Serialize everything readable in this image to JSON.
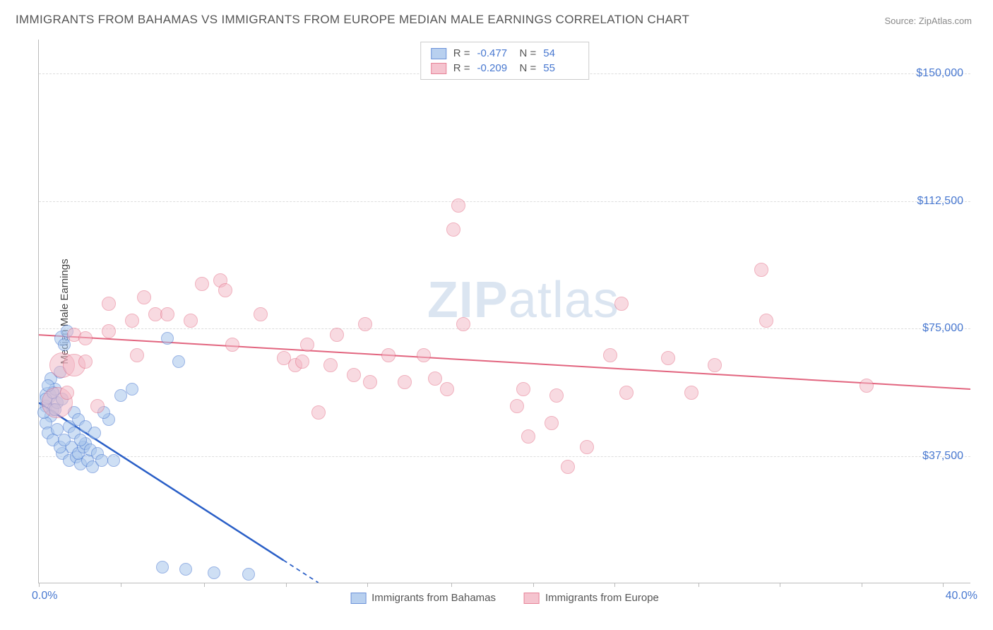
{
  "title": "IMMIGRANTS FROM BAHAMAS VS IMMIGRANTS FROM EUROPE MEDIAN MALE EARNINGS CORRELATION CHART",
  "source": "Source: ZipAtlas.com",
  "y_axis_title": "Median Male Earnings",
  "watermark_bold": "ZIP",
  "watermark_thin": "atlas",
  "chart": {
    "type": "scatter",
    "background_color": "#ffffff",
    "grid_color": "#dddddd",
    "axis_color": "#bbbbbb",
    "value_color": "#4878d0",
    "xlim": [
      0,
      40
    ],
    "ylim": [
      0,
      160000
    ],
    "x_tick_positions": [
      0,
      3.5,
      7.1,
      10.6,
      14.1,
      17.7,
      21.2,
      24.7,
      28.3,
      31.8,
      35.3,
      38.8
    ],
    "x_min_label": "0.0%",
    "x_max_label": "40.0%",
    "y_gridlines": [
      {
        "value": 37500,
        "label": "$37,500"
      },
      {
        "value": 75000,
        "label": "$75,000"
      },
      {
        "value": 112500,
        "label": "$112,500"
      },
      {
        "value": 150000,
        "label": "$150,000"
      }
    ],
    "series": [
      {
        "name": "Immigrants from Bahamas",
        "fill": "#a7c5ec",
        "stroke": "#4878d0",
        "fill_opacity": 0.55,
        "stroke_width": 1.2,
        "marker_radius": 9,
        "line_color": "#2a5fc7",
        "line_width": 2.5,
        "regression": {
          "x1": 0,
          "y1": 53000,
          "x2": 12,
          "y2": 0,
          "dash_after_x": 10.5
        },
        "stats": {
          "R": "-0.477",
          "N": "54"
        },
        "points": [
          {
            "x": 0.3,
            "y": 52000,
            "r": 9
          },
          {
            "x": 0.6,
            "y": 51000,
            "r": 9
          },
          {
            "x": 0.4,
            "y": 55000,
            "r": 12
          },
          {
            "x": 0.5,
            "y": 49000,
            "r": 9
          },
          {
            "x": 0.7,
            "y": 57000,
            "r": 9
          },
          {
            "x": 0.8,
            "y": 53000,
            "r": 9
          },
          {
            "x": 0.5,
            "y": 60000,
            "r": 9
          },
          {
            "x": 0.9,
            "y": 62000,
            "r": 9
          },
          {
            "x": 0.3,
            "y": 47000,
            "r": 9
          },
          {
            "x": 0.4,
            "y": 44000,
            "r": 9
          },
          {
            "x": 1.0,
            "y": 72000,
            "r": 11
          },
          {
            "x": 1.2,
            "y": 74000,
            "r": 9
          },
          {
            "x": 1.1,
            "y": 70000,
            "r": 9
          },
          {
            "x": 1.3,
            "y": 46000,
            "r": 9
          },
          {
            "x": 1.5,
            "y": 44000,
            "r": 9
          },
          {
            "x": 1.4,
            "y": 40000,
            "r": 9
          },
          {
            "x": 1.0,
            "y": 38000,
            "r": 9
          },
          {
            "x": 1.3,
            "y": 36000,
            "r": 9
          },
          {
            "x": 1.6,
            "y": 37000,
            "r": 9
          },
          {
            "x": 1.8,
            "y": 35000,
            "r": 9
          },
          {
            "x": 1.7,
            "y": 38000,
            "r": 9
          },
          {
            "x": 1.9,
            "y": 40000,
            "r": 9
          },
          {
            "x": 2.0,
            "y": 41000,
            "r": 9
          },
          {
            "x": 2.1,
            "y": 36000,
            "r": 9
          },
          {
            "x": 2.3,
            "y": 34000,
            "r": 9
          },
          {
            "x": 2.2,
            "y": 39000,
            "r": 9
          },
          {
            "x": 2.5,
            "y": 38000,
            "r": 9
          },
          {
            "x": 2.7,
            "y": 36000,
            "r": 9
          },
          {
            "x": 1.5,
            "y": 50000,
            "r": 9
          },
          {
            "x": 1.7,
            "y": 48000,
            "r": 9
          },
          {
            "x": 2.0,
            "y": 46000,
            "r": 9
          },
          {
            "x": 2.4,
            "y": 44000,
            "r": 9
          },
          {
            "x": 0.8,
            "y": 45000,
            "r": 9
          },
          {
            "x": 0.6,
            "y": 42000,
            "r": 9
          },
          {
            "x": 0.9,
            "y": 40000,
            "r": 9
          },
          {
            "x": 1.1,
            "y": 42000,
            "r": 9
          },
          {
            "x": 3.0,
            "y": 48000,
            "r": 9
          },
          {
            "x": 3.2,
            "y": 36000,
            "r": 9
          },
          {
            "x": 3.5,
            "y": 55000,
            "r": 9
          },
          {
            "x": 4.0,
            "y": 57000,
            "r": 9
          },
          {
            "x": 5.5,
            "y": 72000,
            "r": 9
          },
          {
            "x": 6.0,
            "y": 65000,
            "r": 9
          },
          {
            "x": 6.3,
            "y": 4000,
            "r": 9
          },
          {
            "x": 5.3,
            "y": 4500,
            "r": 9
          },
          {
            "x": 7.5,
            "y": 3000,
            "r": 9
          },
          {
            "x": 9.0,
            "y": 2500,
            "r": 9
          },
          {
            "x": 2.8,
            "y": 50000,
            "r": 9
          },
          {
            "x": 0.2,
            "y": 50000,
            "r": 9
          },
          {
            "x": 0.3,
            "y": 54000,
            "r": 9
          },
          {
            "x": 0.6,
            "y": 56000,
            "r": 9
          },
          {
            "x": 0.4,
            "y": 58000,
            "r": 9
          },
          {
            "x": 0.7,
            "y": 51000,
            "r": 9
          },
          {
            "x": 1.0,
            "y": 54000,
            "r": 9
          },
          {
            "x": 1.8,
            "y": 42000,
            "r": 9
          }
        ]
      },
      {
        "name": "Immigrants from Europe",
        "fill": "#f3b6c4",
        "stroke": "#e2657f",
        "fill_opacity": 0.5,
        "stroke_width": 1.2,
        "marker_radius": 10,
        "line_color": "#e2657f",
        "line_width": 2,
        "regression": {
          "x1": 0,
          "y1": 73000,
          "x2": 40,
          "y2": 57000
        },
        "stats": {
          "R": "-0.209",
          "N": "55"
        },
        "points": [
          {
            "x": 1.0,
            "y": 64000,
            "r": 18
          },
          {
            "x": 0.8,
            "y": 53000,
            "r": 22
          },
          {
            "x": 1.5,
            "y": 64000,
            "r": 16
          },
          {
            "x": 1.5,
            "y": 73000,
            "r": 10
          },
          {
            "x": 2.0,
            "y": 72000,
            "r": 10
          },
          {
            "x": 2.0,
            "y": 65000,
            "r": 10
          },
          {
            "x": 3.0,
            "y": 74000,
            "r": 10
          },
          {
            "x": 3.0,
            "y": 82000,
            "r": 10
          },
          {
            "x": 4.0,
            "y": 77000,
            "r": 10
          },
          {
            "x": 4.5,
            "y": 84000,
            "r": 10
          },
          {
            "x": 4.2,
            "y": 67000,
            "r": 10
          },
          {
            "x": 5.0,
            "y": 79000,
            "r": 10
          },
          {
            "x": 5.5,
            "y": 79000,
            "r": 10
          },
          {
            "x": 6.5,
            "y": 77000,
            "r": 10
          },
          {
            "x": 7.0,
            "y": 88000,
            "r": 10
          },
          {
            "x": 7.8,
            "y": 89000,
            "r": 10
          },
          {
            "x": 8.0,
            "y": 86000,
            "r": 10
          },
          {
            "x": 8.3,
            "y": 70000,
            "r": 10
          },
          {
            "x": 9.5,
            "y": 79000,
            "r": 10
          },
          {
            "x": 10.5,
            "y": 66000,
            "r": 10
          },
          {
            "x": 11.0,
            "y": 64000,
            "r": 10
          },
          {
            "x": 11.3,
            "y": 65000,
            "r": 10
          },
          {
            "x": 11.5,
            "y": 70000,
            "r": 10
          },
          {
            "x": 12.0,
            "y": 50000,
            "r": 10
          },
          {
            "x": 12.5,
            "y": 64000,
            "r": 10
          },
          {
            "x": 12.8,
            "y": 73000,
            "r": 10
          },
          {
            "x": 13.5,
            "y": 61000,
            "r": 10
          },
          {
            "x": 14.0,
            "y": 76000,
            "r": 10
          },
          {
            "x": 14.2,
            "y": 59000,
            "r": 10
          },
          {
            "x": 15.0,
            "y": 67000,
            "r": 10
          },
          {
            "x": 15.7,
            "y": 59000,
            "r": 10
          },
          {
            "x": 16.5,
            "y": 67000,
            "r": 10
          },
          {
            "x": 17.0,
            "y": 60000,
            "r": 10
          },
          {
            "x": 17.5,
            "y": 57000,
            "r": 10
          },
          {
            "x": 17.8,
            "y": 104000,
            "r": 10
          },
          {
            "x": 18.0,
            "y": 111000,
            "r": 10
          },
          {
            "x": 18.2,
            "y": 76000,
            "r": 10
          },
          {
            "x": 20.5,
            "y": 52000,
            "r": 10
          },
          {
            "x": 20.8,
            "y": 57000,
            "r": 10
          },
          {
            "x": 21.0,
            "y": 43000,
            "r": 10
          },
          {
            "x": 22.0,
            "y": 47000,
            "r": 10
          },
          {
            "x": 22.2,
            "y": 55000,
            "r": 10
          },
          {
            "x": 22.7,
            "y": 34000,
            "r": 10
          },
          {
            "x": 23.5,
            "y": 40000,
            "r": 10
          },
          {
            "x": 24.5,
            "y": 67000,
            "r": 10
          },
          {
            "x": 25.0,
            "y": 82000,
            "r": 10
          },
          {
            "x": 25.2,
            "y": 56000,
            "r": 10
          },
          {
            "x": 27.0,
            "y": 66000,
            "r": 10
          },
          {
            "x": 28.0,
            "y": 56000,
            "r": 10
          },
          {
            "x": 29.0,
            "y": 64000,
            "r": 10
          },
          {
            "x": 31.0,
            "y": 92000,
            "r": 10
          },
          {
            "x": 31.2,
            "y": 77000,
            "r": 10
          },
          {
            "x": 35.5,
            "y": 58000,
            "r": 10
          },
          {
            "x": 2.5,
            "y": 52000,
            "r": 10
          },
          {
            "x": 1.2,
            "y": 56000,
            "r": 10
          }
        ]
      }
    ]
  },
  "legend_bottom": [
    {
      "label": "Immigrants from Bahamas",
      "fill": "#a7c5ec",
      "stroke": "#4878d0"
    },
    {
      "label": "Immigrants from Europe",
      "fill": "#f3b6c4",
      "stroke": "#e2657f"
    }
  ]
}
